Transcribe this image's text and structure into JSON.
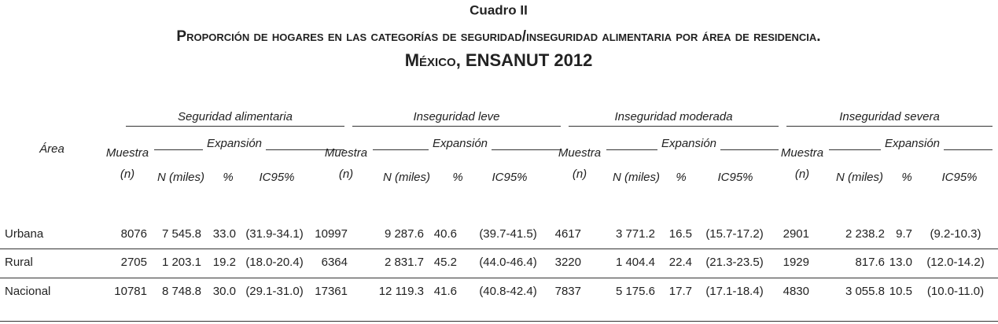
{
  "header": {
    "label": "Cuadro II",
    "title_line1": "Proporción de hogares en las categorías de seguridad/inseguridad alimentaria por área de residencia.",
    "title_line2": "México, ENSANUT 2012"
  },
  "table": {
    "area_label": "Área",
    "groups": [
      {
        "name": "Seguridad alimentaria",
        "sample": "Muestra",
        "sample_unit": "(n)",
        "expansion": "Expansión",
        "columns": [
          "N (miles)",
          "%",
          "IC95%"
        ]
      },
      {
        "name": "Inseguridad leve",
        "sample": "Muestra",
        "sample_unit": "(n)",
        "expansion": "Expansión",
        "columns": [
          "N (miles)",
          "%",
          "IC95%"
        ]
      },
      {
        "name": "Inseguridad moderada",
        "sample": "Muestra",
        "sample_unit": "(n)",
        "expansion": "Expansión",
        "columns": [
          "N (miles)",
          "%",
          "IC95%"
        ]
      },
      {
        "name": "Inseguridad severa",
        "sample": "Muestra",
        "sample_unit": "(n)",
        "expansion": "Expansión",
        "columns": [
          "N (miles)",
          "%",
          "IC95%"
        ]
      }
    ],
    "rows": [
      {
        "area": "Urbana",
        "cells": [
          "8076",
          "7 545.8",
          "33.0",
          "(31.9-34.1)",
          "10997",
          "9 287.6",
          "40.6",
          "(39.7-41.5)",
          "4617",
          "3 771.2",
          "16.5",
          "(15.7-17.2)",
          "2901",
          "2 238.2",
          "9.7",
          "(9.2-10.3)"
        ]
      },
      {
        "area": "Rural",
        "cells": [
          "2705",
          "1 203.1",
          "19.2",
          "(18.0-20.4)",
          "6364",
          "2 831.7",
          "45.2",
          "(44.0-46.4)",
          "3220",
          "1 404.4",
          "22.4",
          "(21.3-23.5)",
          "1929",
          "817.6",
          "13.0",
          "(12.0-14.2)"
        ]
      },
      {
        "area": "Nacional",
        "cells": [
          "10781",
          "8 748.8",
          "30.0",
          "(29.1-31.0)",
          "17361",
          "12 119.3",
          "41.6",
          "(40.8-42.4)",
          "7837",
          "5 175.6",
          "17.7",
          "(17.1-18.4)",
          "4830",
          "3 055.8",
          "10.5",
          "(10.0-11.0)"
        ]
      }
    ]
  }
}
